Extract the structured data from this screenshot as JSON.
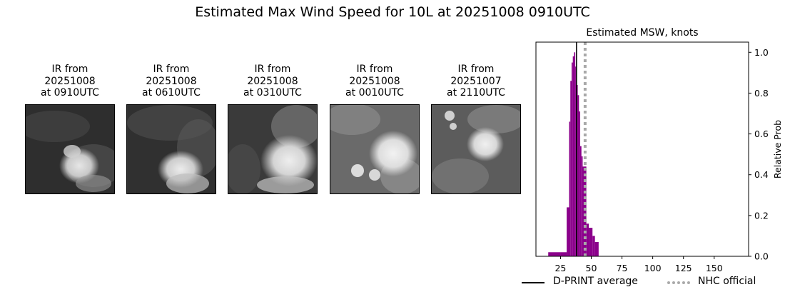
{
  "title": "Estimated Max Wind Speed for 10L at 20251008 0910UTC",
  "panels": [
    {
      "line1": "IR from",
      "line2": "20251008",
      "line3": "at 0910UTC"
    },
    {
      "line1": "IR from",
      "line2": "20251008",
      "line3": "at 0610UTC"
    },
    {
      "line1": "IR from",
      "line2": "20251008",
      "line3": "at 0310UTC"
    },
    {
      "line1": "IR from",
      "line2": "20251008",
      "line3": "at 0010UTC"
    },
    {
      "line1": "IR from",
      "line2": "20251007",
      "line3": "at 2110UTC"
    }
  ],
  "legend": {
    "dprint_label": "D-PRINT average",
    "nhc_label": "NHC official"
  },
  "colors": {
    "bars": "#8b008b",
    "dprint_line": "#000000",
    "nhc_line": "#a9a9a9"
  },
  "chart_data": {
    "type": "bar",
    "title": "Estimated MSW, knots",
    "xlabel": "",
    "ylabel": "Relative Prob",
    "xlim": [
      5,
      178
    ],
    "ylim": [
      0,
      1.05
    ],
    "xticks": [
      25,
      50,
      75,
      100,
      125,
      150
    ],
    "yticks": [
      0.0,
      0.2,
      0.4,
      0.6,
      0.8,
      1.0
    ],
    "y_axis_side": "right",
    "bins": [
      {
        "x0": 15,
        "x1": 25,
        "value": 0.02
      },
      {
        "x0": 25,
        "x1": 30,
        "value": 0.02
      },
      {
        "x0": 30,
        "x1": 32,
        "value": 0.24
      },
      {
        "x0": 32,
        "x1": 33,
        "value": 0.66
      },
      {
        "x0": 33,
        "x1": 34,
        "value": 0.86
      },
      {
        "x0": 34,
        "x1": 35,
        "value": 0.95
      },
      {
        "x0": 35,
        "x1": 36,
        "value": 0.98
      },
      {
        "x0": 36,
        "x1": 37,
        "value": 1.0
      },
      {
        "x0": 37,
        "x1": 38,
        "value": 0.93
      },
      {
        "x0": 38,
        "x1": 39,
        "value": 0.84
      },
      {
        "x0": 39,
        "x1": 40,
        "value": 0.79
      },
      {
        "x0": 40,
        "x1": 41,
        "value": 0.71
      },
      {
        "x0": 41,
        "x1": 42,
        "value": 0.54
      },
      {
        "x0": 42,
        "x1": 43,
        "value": 0.49
      },
      {
        "x0": 43,
        "x1": 46,
        "value": 0.44
      },
      {
        "x0": 46,
        "x1": 48,
        "value": 0.16
      },
      {
        "x0": 48,
        "x1": 51,
        "value": 0.14
      },
      {
        "x0": 51,
        "x1": 53,
        "value": 0.1
      },
      {
        "x0": 53,
        "x1": 56,
        "value": 0.07
      }
    ],
    "dprint_average": 38,
    "nhc_official": 45
  }
}
